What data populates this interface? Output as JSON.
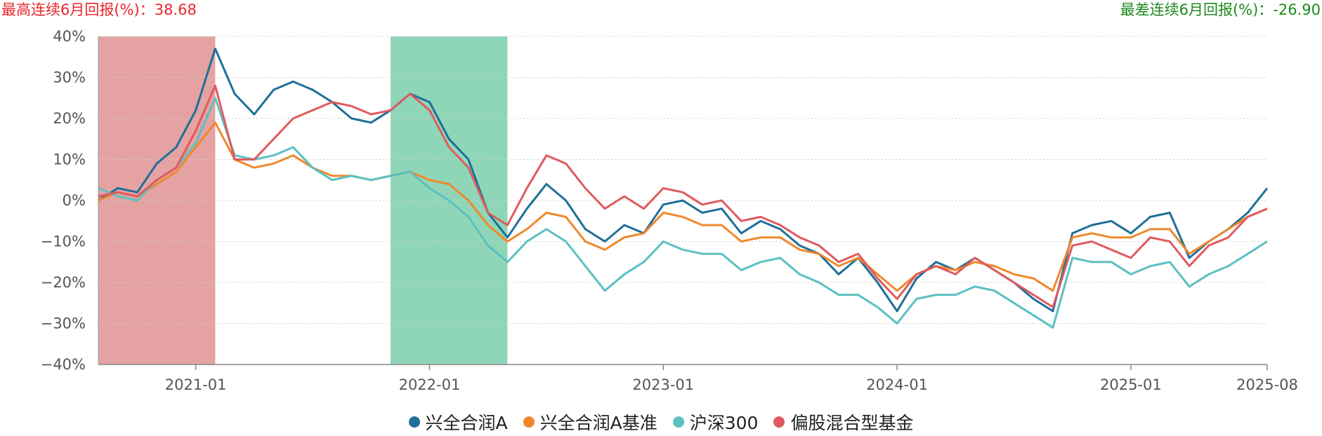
{
  "header": {
    "best_label": "最高连续6月回报(%)：",
    "best_value": "38.68",
    "worst_label": "最差连续6月回报(%)：",
    "worst_value": "-26.90",
    "best_color": "#e8262b",
    "worst_color": "#1e8a1e"
  },
  "chart_data": {
    "type": "line",
    "x_ticks": [
      "2021-01",
      "2022-01",
      "2023-01",
      "2024-01",
      "2025-01",
      "2025-08"
    ],
    "y_ticks": [
      "40%",
      "30%",
      "20%",
      "10%",
      "0%",
      "−10%",
      "−20%",
      "−30%",
      "−40%"
    ],
    "ylim": [
      -40,
      40
    ],
    "xlim": [
      "2020-08",
      "2025-08"
    ],
    "grid": true,
    "legend_position": "bottom",
    "shaded_ranges": [
      {
        "start": "2020-08",
        "end": "2021-02",
        "color": "#d97a7a",
        "meaning": "best 6-month"
      },
      {
        "start": "2021-11",
        "end": "2022-05",
        "color": "#5fc49a",
        "meaning": "worst 6-month"
      }
    ],
    "series": [
      {
        "name": "兴全合润A",
        "color": "#1f6f99",
        "points": [
          [
            "2020-08",
            0
          ],
          [
            "2020-09",
            3
          ],
          [
            "2020-10",
            2
          ],
          [
            "2020-11",
            9
          ],
          [
            "2020-12",
            13
          ],
          [
            "2021-01",
            22
          ],
          [
            "2021-02",
            37
          ],
          [
            "2021-03",
            26
          ],
          [
            "2021-04",
            21
          ],
          [
            "2021-05",
            27
          ],
          [
            "2021-06",
            29
          ],
          [
            "2021-07",
            27
          ],
          [
            "2021-08",
            24
          ],
          [
            "2021-09",
            20
          ],
          [
            "2021-10",
            19
          ],
          [
            "2021-11",
            22
          ],
          [
            "2021-12",
            26
          ],
          [
            "2022-01",
            24
          ],
          [
            "2022-02",
            15
          ],
          [
            "2022-03",
            10
          ],
          [
            "2022-04",
            -3
          ],
          [
            "2022-05",
            -9
          ],
          [
            "2022-06",
            -2
          ],
          [
            "2022-07",
            4
          ],
          [
            "2022-08",
            0
          ],
          [
            "2022-09",
            -7
          ],
          [
            "2022-10",
            -10
          ],
          [
            "2022-11",
            -6
          ],
          [
            "2022-12",
            -8
          ],
          [
            "2023-01",
            -1
          ],
          [
            "2023-02",
            0
          ],
          [
            "2023-03",
            -3
          ],
          [
            "2023-04",
            -2
          ],
          [
            "2023-05",
            -8
          ],
          [
            "2023-06",
            -5
          ],
          [
            "2023-07",
            -7
          ],
          [
            "2023-08",
            -11
          ],
          [
            "2023-09",
            -13
          ],
          [
            "2023-10",
            -18
          ],
          [
            "2023-11",
            -14
          ],
          [
            "2023-12",
            -20
          ],
          [
            "2024-01",
            -27
          ],
          [
            "2024-02",
            -19
          ],
          [
            "2024-03",
            -15
          ],
          [
            "2024-04",
            -17
          ],
          [
            "2024-05",
            -14
          ],
          [
            "2024-06",
            -17
          ],
          [
            "2024-07",
            -20
          ],
          [
            "2024-08",
            -24
          ],
          [
            "2024-09",
            -27
          ],
          [
            "2024-10",
            -8
          ],
          [
            "2024-11",
            -6
          ],
          [
            "2024-12",
            -5
          ],
          [
            "2025-01",
            -8
          ],
          [
            "2025-02",
            -4
          ],
          [
            "2025-03",
            -3
          ],
          [
            "2025-04",
            -14
          ],
          [
            "2025-05",
            -10
          ],
          [
            "2025-06",
            -7
          ],
          [
            "2025-07",
            -3
          ],
          [
            "2025-08",
            3
          ]
        ]
      },
      {
        "name": "兴全合润A基准",
        "color": "#f0882a",
        "points": [
          [
            "2020-08",
            0
          ],
          [
            "2020-09",
            2
          ],
          [
            "2020-10",
            1
          ],
          [
            "2020-11",
            4
          ],
          [
            "2020-12",
            7
          ],
          [
            "2021-01",
            13
          ],
          [
            "2021-02",
            19
          ],
          [
            "2021-03",
            10
          ],
          [
            "2021-04",
            8
          ],
          [
            "2021-05",
            9
          ],
          [
            "2021-06",
            11
          ],
          [
            "2021-07",
            8
          ],
          [
            "2021-08",
            6
          ],
          [
            "2021-09",
            6
          ],
          [
            "2021-10",
            5
          ],
          [
            "2021-11",
            6
          ],
          [
            "2021-12",
            7
          ],
          [
            "2022-01",
            5
          ],
          [
            "2022-02",
            4
          ],
          [
            "2022-03",
            0
          ],
          [
            "2022-04",
            -6
          ],
          [
            "2022-05",
            -10
          ],
          [
            "2022-06",
            -7
          ],
          [
            "2022-07",
            -3
          ],
          [
            "2022-08",
            -4
          ],
          [
            "2022-09",
            -10
          ],
          [
            "2022-10",
            -12
          ],
          [
            "2022-11",
            -9
          ],
          [
            "2022-12",
            -8
          ],
          [
            "2023-01",
            -3
          ],
          [
            "2023-02",
            -4
          ],
          [
            "2023-03",
            -6
          ],
          [
            "2023-04",
            -6
          ],
          [
            "2023-05",
            -10
          ],
          [
            "2023-06",
            -9
          ],
          [
            "2023-07",
            -9
          ],
          [
            "2023-08",
            -12
          ],
          [
            "2023-09",
            -13
          ],
          [
            "2023-10",
            -16
          ],
          [
            "2023-11",
            -14
          ],
          [
            "2023-12",
            -18
          ],
          [
            "2024-01",
            -22
          ],
          [
            "2024-02",
            -18
          ],
          [
            "2024-03",
            -16
          ],
          [
            "2024-04",
            -17
          ],
          [
            "2024-05",
            -15
          ],
          [
            "2024-06",
            -16
          ],
          [
            "2024-07",
            -18
          ],
          [
            "2024-08",
            -19
          ],
          [
            "2024-09",
            -22
          ],
          [
            "2024-10",
            -9
          ],
          [
            "2024-11",
            -8
          ],
          [
            "2024-12",
            -9
          ],
          [
            "2025-01",
            -9
          ],
          [
            "2025-02",
            -7
          ],
          [
            "2025-03",
            -7
          ],
          [
            "2025-04",
            -13
          ],
          [
            "2025-05",
            -10
          ],
          [
            "2025-06",
            -7
          ],
          [
            "2025-07",
            -4
          ],
          [
            "2025-08",
            -2
          ]
        ]
      },
      {
        "name": "沪深300",
        "color": "#5bc0c0",
        "points": [
          [
            "2020-08",
            3
          ],
          [
            "2020-09",
            1
          ],
          [
            "2020-10",
            0
          ],
          [
            "2020-11",
            5
          ],
          [
            "2020-12",
            8
          ],
          [
            "2021-01",
            14
          ],
          [
            "2021-02",
            25
          ],
          [
            "2021-03",
            11
          ],
          [
            "2021-04",
            10
          ],
          [
            "2021-05",
            11
          ],
          [
            "2021-06",
            13
          ],
          [
            "2021-07",
            8
          ],
          [
            "2021-08",
            5
          ],
          [
            "2021-09",
            6
          ],
          [
            "2021-10",
            5
          ],
          [
            "2021-11",
            6
          ],
          [
            "2021-12",
            7
          ],
          [
            "2022-01",
            3
          ],
          [
            "2022-02",
            0
          ],
          [
            "2022-03",
            -4
          ],
          [
            "2022-04",
            -11
          ],
          [
            "2022-05",
            -15
          ],
          [
            "2022-06",
            -10
          ],
          [
            "2022-07",
            -7
          ],
          [
            "2022-08",
            -10
          ],
          [
            "2022-09",
            -16
          ],
          [
            "2022-10",
            -22
          ],
          [
            "2022-11",
            -18
          ],
          [
            "2022-12",
            -15
          ],
          [
            "2023-01",
            -10
          ],
          [
            "2023-02",
            -12
          ],
          [
            "2023-03",
            -13
          ],
          [
            "2023-04",
            -13
          ],
          [
            "2023-05",
            -17
          ],
          [
            "2023-06",
            -15
          ],
          [
            "2023-07",
            -14
          ],
          [
            "2023-08",
            -18
          ],
          [
            "2023-09",
            -20
          ],
          [
            "2023-10",
            -23
          ],
          [
            "2023-11",
            -23
          ],
          [
            "2023-12",
            -26
          ],
          [
            "2024-01",
            -30
          ],
          [
            "2024-02",
            -24
          ],
          [
            "2024-03",
            -23
          ],
          [
            "2024-04",
            -23
          ],
          [
            "2024-05",
            -21
          ],
          [
            "2024-06",
            -22
          ],
          [
            "2024-07",
            -25
          ],
          [
            "2024-08",
            -28
          ],
          [
            "2024-09",
            -31
          ],
          [
            "2024-10",
            -14
          ],
          [
            "2024-11",
            -15
          ],
          [
            "2024-12",
            -15
          ],
          [
            "2025-01",
            -18
          ],
          [
            "2025-02",
            -16
          ],
          [
            "2025-03",
            -15
          ],
          [
            "2025-04",
            -21
          ],
          [
            "2025-05",
            -18
          ],
          [
            "2025-06",
            -16
          ],
          [
            "2025-07",
            -13
          ],
          [
            "2025-08",
            -10
          ]
        ]
      },
      {
        "name": "偏股混合型基金",
        "color": "#e05a5f",
        "points": [
          [
            "2020-08",
            1
          ],
          [
            "2020-09",
            2
          ],
          [
            "2020-10",
            1
          ],
          [
            "2020-11",
            5
          ],
          [
            "2020-12",
            8
          ],
          [
            "2021-01",
            17
          ],
          [
            "2021-02",
            28
          ],
          [
            "2021-03",
            10
          ],
          [
            "2021-04",
            10
          ],
          [
            "2021-05",
            15
          ],
          [
            "2021-06",
            20
          ],
          [
            "2021-07",
            22
          ],
          [
            "2021-08",
            24
          ],
          [
            "2021-09",
            23
          ],
          [
            "2021-10",
            21
          ],
          [
            "2021-11",
            22
          ],
          [
            "2021-12",
            26
          ],
          [
            "2022-01",
            22
          ],
          [
            "2022-02",
            13
          ],
          [
            "2022-03",
            8
          ],
          [
            "2022-04",
            -3
          ],
          [
            "2022-05",
            -6
          ],
          [
            "2022-06",
            3
          ],
          [
            "2022-07",
            11
          ],
          [
            "2022-08",
            9
          ],
          [
            "2022-09",
            3
          ],
          [
            "2022-10",
            -2
          ],
          [
            "2022-11",
            1
          ],
          [
            "2022-12",
            -2
          ],
          [
            "2023-01",
            3
          ],
          [
            "2023-02",
            2
          ],
          [
            "2023-03",
            -1
          ],
          [
            "2023-04",
            0
          ],
          [
            "2023-05",
            -5
          ],
          [
            "2023-06",
            -4
          ],
          [
            "2023-07",
            -6
          ],
          [
            "2023-08",
            -9
          ],
          [
            "2023-09",
            -11
          ],
          [
            "2023-10",
            -15
          ],
          [
            "2023-11",
            -13
          ],
          [
            "2023-12",
            -19
          ],
          [
            "2024-01",
            -24
          ],
          [
            "2024-02",
            -18
          ],
          [
            "2024-03",
            -16
          ],
          [
            "2024-04",
            -18
          ],
          [
            "2024-05",
            -14
          ],
          [
            "2024-06",
            -17
          ],
          [
            "2024-07",
            -20
          ],
          [
            "2024-08",
            -23
          ],
          [
            "2024-09",
            -26
          ],
          [
            "2024-10",
            -11
          ],
          [
            "2024-11",
            -10
          ],
          [
            "2024-12",
            -12
          ],
          [
            "2025-01",
            -14
          ],
          [
            "2025-02",
            -9
          ],
          [
            "2025-03",
            -10
          ],
          [
            "2025-04",
            -16
          ],
          [
            "2025-05",
            -11
          ],
          [
            "2025-06",
            -9
          ],
          [
            "2025-07",
            -4
          ],
          [
            "2025-08",
            -2
          ]
        ]
      }
    ]
  }
}
